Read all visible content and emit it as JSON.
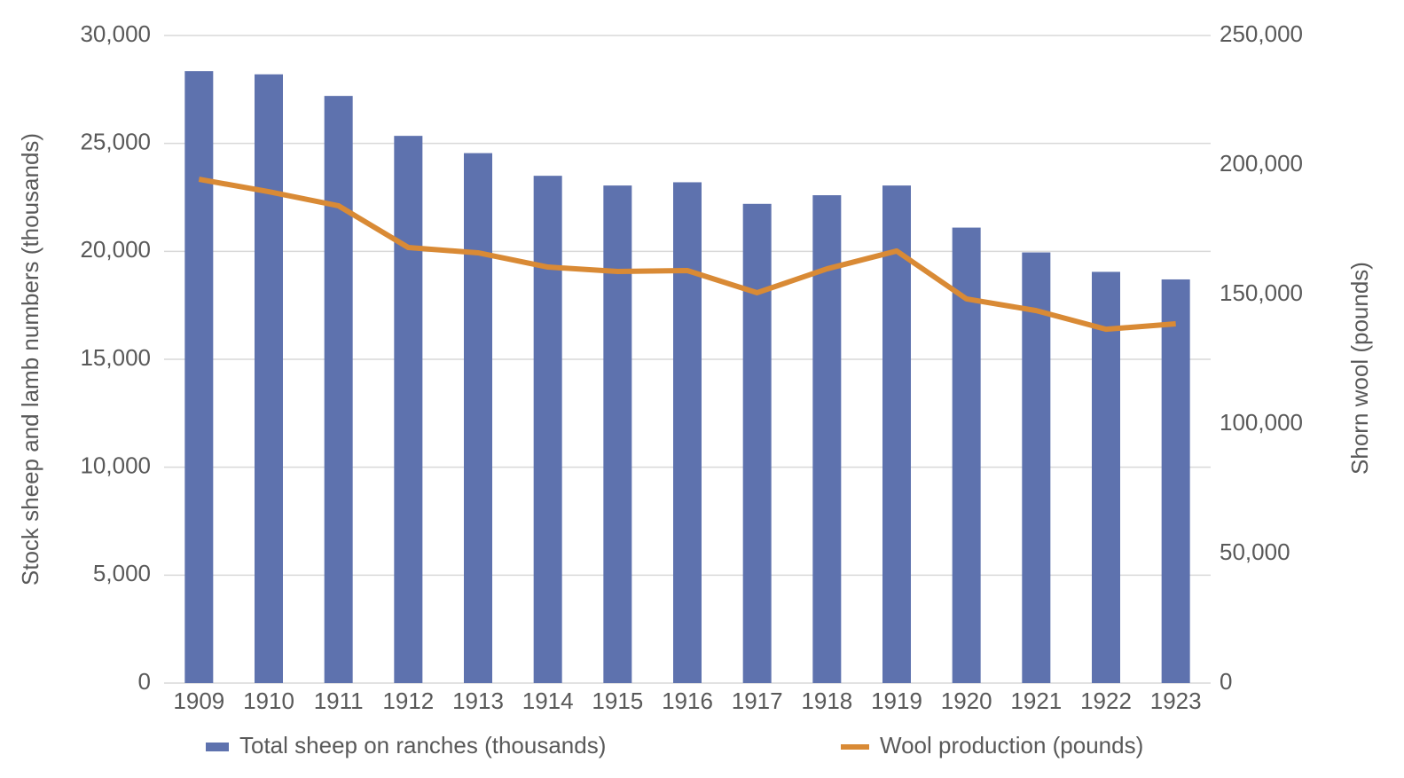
{
  "chart_data": {
    "type": "bar-line",
    "categories": [
      "1909",
      "1910",
      "1911",
      "1912",
      "1913",
      "1914",
      "1915",
      "1916",
      "1917",
      "1918",
      "1919",
      "1920",
      "1921",
      "1922",
      "1923"
    ],
    "series": [
      {
        "name": "Total sheep on ranches (thousands)",
        "type": "bar",
        "color": "#5e72ae",
        "values": [
          28350,
          28200,
          27200,
          25350,
          24550,
          23500,
          23050,
          23200,
          22200,
          22600,
          23050,
          21100,
          19950,
          19050,
          18700
        ]
      },
      {
        "name": "Wool production (pounds)",
        "type": "line",
        "axis": "y2",
        "color": "#d98a35",
        "values": [
          194500,
          189700,
          184250,
          168150,
          166100,
          160600,
          158900,
          159250,
          150700,
          159900,
          166800,
          148300,
          143800,
          136600,
          138700
        ]
      }
    ],
    "y_label": "Stock sheep and lamb numbers (thousands)",
    "y2_label": "Shorn wool (pounds)",
    "ylim": [
      0,
      30000
    ],
    "yticks": [
      0,
      {
        "value": 5000,
        "label": "5,000"
      },
      {
        "value": 10000,
        "label": "10,000"
      },
      {
        "value": 15000,
        "label": "15,000"
      },
      {
        "value": 20000,
        "label": "20,000"
      },
      {
        "value": 25000,
        "label": "25,000"
      },
      {
        "value": 30000,
        "label": "30,000"
      }
    ],
    "y2lim": [
      0,
      250000
    ],
    "y2ticks": [
      0,
      {
        "value": 50000,
        "label": "50,000"
      },
      {
        "value": 100000,
        "label": "100,000"
      },
      {
        "value": 150000,
        "label": "150,000"
      },
      {
        "value": 200000,
        "label": "200,000"
      },
      {
        "value": 250000,
        "label": "250,000"
      }
    ],
    "grid": true,
    "legend": "bottom"
  }
}
